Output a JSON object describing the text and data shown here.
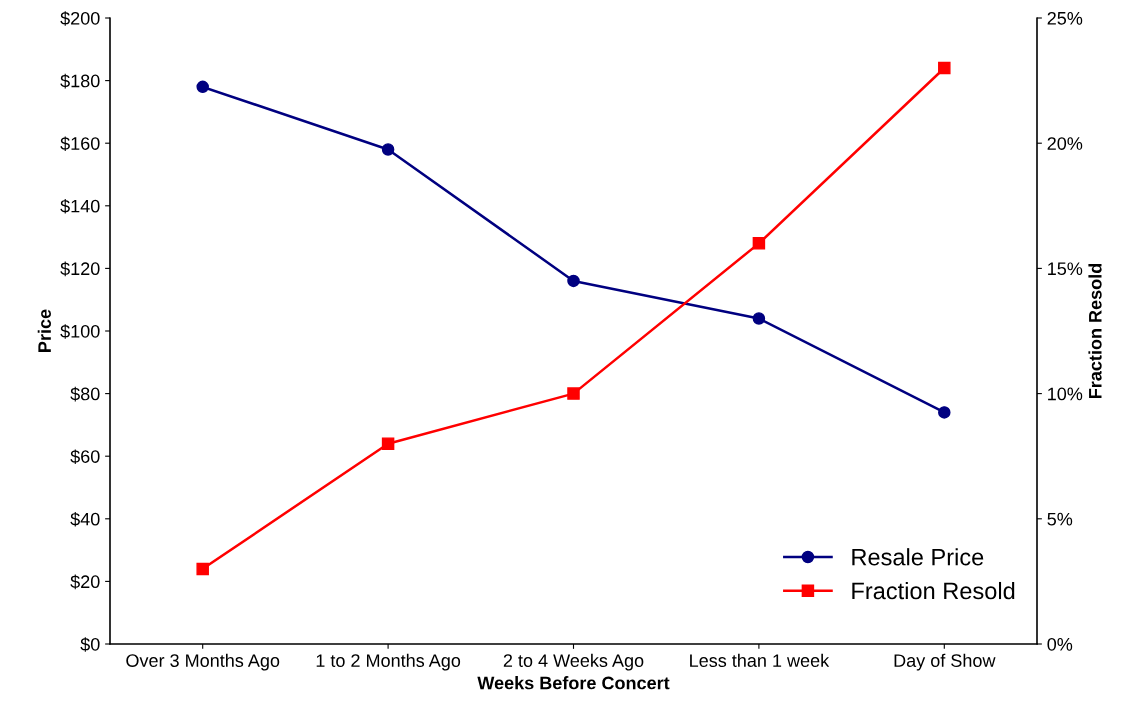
{
  "chart_data": {
    "type": "line",
    "xlabel": "Weeks Before Concert",
    "ylabel": "Price",
    "y2label": "Fraction Resold",
    "categories": [
      "Over 3 Months Ago",
      "1 to 2 Months Ago",
      "2 to 4 Weeks Ago",
      "Less than 1 week",
      "Day of Show"
    ],
    "series": [
      {
        "name": "Resale Price",
        "color": "#000080",
        "marker": "circle",
        "values": [
          178,
          158,
          116,
          104,
          74
        ]
      },
      {
        "name": "Fraction Resold",
        "color": "#ff0000",
        "marker": "square",
        "axis": "y2",
        "values": [
          3,
          8,
          10,
          16,
          23
        ]
      }
    ],
    "ylim": [
      0,
      200
    ],
    "yticks": [
      {
        "value": 0,
        "label": "$0"
      },
      {
        "value": 20,
        "label": "$20"
      },
      {
        "value": 40,
        "label": "$40"
      },
      {
        "value": 60,
        "label": "$60"
      },
      {
        "value": 80,
        "label": "$80"
      },
      {
        "value": 100,
        "label": "$100"
      },
      {
        "value": 120,
        "label": "$120"
      },
      {
        "value": 140,
        "label": "$140"
      },
      {
        "value": 160,
        "label": "$160"
      },
      {
        "value": 180,
        "label": "$180"
      },
      {
        "value": 200,
        "label": "$200"
      }
    ],
    "y2lim": [
      0,
      25
    ],
    "y2ticks": [
      {
        "value": 0,
        "label": "0%"
      },
      {
        "value": 5,
        "label": "5%"
      },
      {
        "value": 10,
        "label": "10%"
      },
      {
        "value": 15,
        "label": "15%"
      },
      {
        "value": 20,
        "label": "20%"
      },
      {
        "value": 25,
        "label": "25%"
      }
    ],
    "grid": false,
    "legend": "bottom right",
    "line_style": "solid"
  }
}
